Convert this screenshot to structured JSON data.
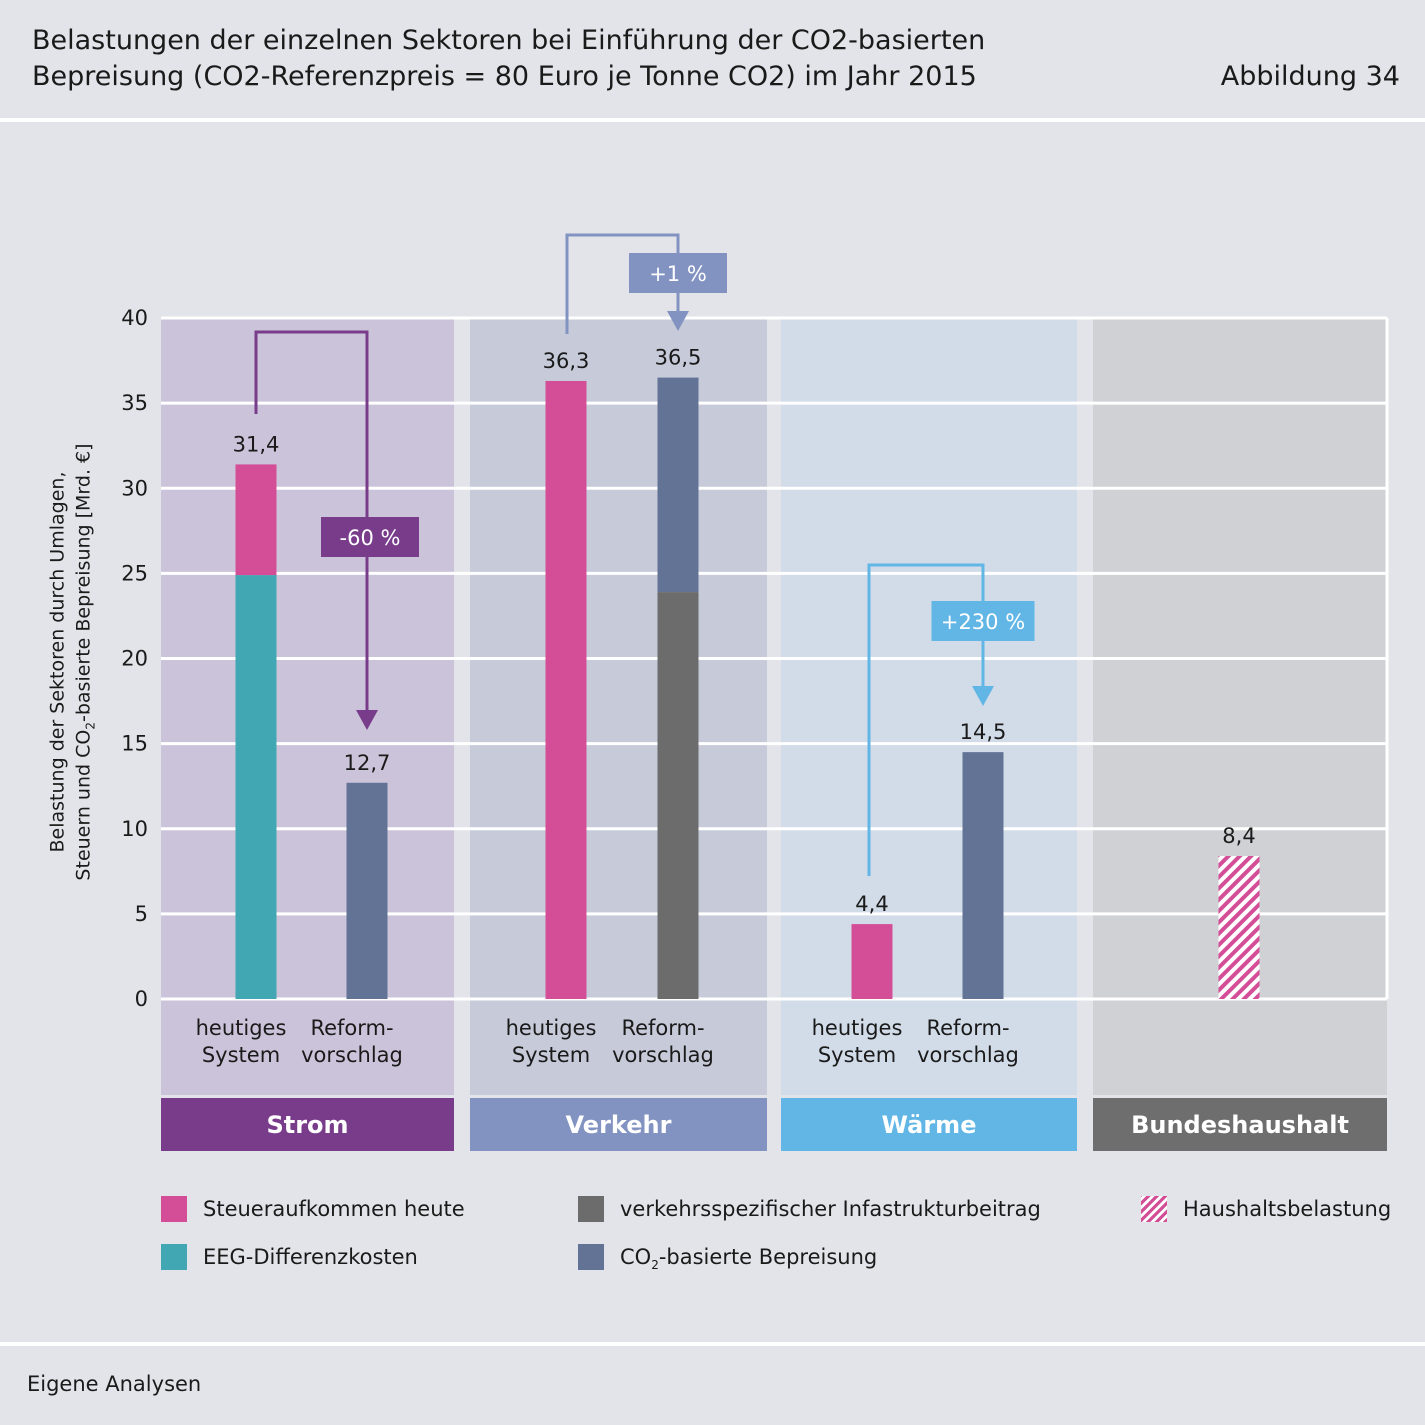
{
  "header": {
    "title_line1": "Belastungen der einzelnen Sektoren bei Einführung der CO2-basierten",
    "title_line2": "Bepreisung (CO2-Referenzpreis = 80 Euro je Tonne CO2) im Jahr 2015",
    "figure_label": "Abbildung 34"
  },
  "chart_data": {
    "type": "bar",
    "stacked": true,
    "ylabel_line1": "Belastung der Sektoren durch Umlagen,",
    "ylabel_line2": "Steuern und CO",
    "ylabel_sub": "2",
    "ylabel_line2_end": "-basierte Bepreisung [Mrd. €]",
    "ylim": [
      0,
      40
    ],
    "yticks": [
      0,
      5,
      10,
      15,
      20,
      25,
      30,
      35,
      40
    ],
    "grid": true,
    "groups": [
      {
        "name": "Strom",
        "color": "#783c8b",
        "bg": "#cbc3d9",
        "bars": [
          {
            "label1": "heutiges",
            "label2": "System",
            "total_label": "31,4",
            "segments": [
              {
                "series": "EEG-Differenzkosten",
                "value": 24.9
              },
              {
                "series": "Steueraufkommen heute",
                "value": 6.5
              }
            ]
          },
          {
            "label1": "Reform-",
            "label2": "vorschlag",
            "total_label": "12,7",
            "segments": [
              {
                "series": "CO2-basierte Bepreisung",
                "value": 12.7
              }
            ]
          }
        ],
        "change": {
          "label": "-60 %",
          "color": "#783c8b"
        }
      },
      {
        "name": "Verkehr",
        "color": "#8293c1",
        "bg": "#c6cad9",
        "bars": [
          {
            "label1": "heutiges",
            "label2": "System",
            "total_label": "36,3",
            "segments": [
              {
                "series": "Steueraufkommen heute",
                "value": 36.3
              }
            ]
          },
          {
            "label1": "Reform-",
            "label2": "vorschlag",
            "total_label": "36,5",
            "segments": [
              {
                "series": "verkehrsspezifischer Infastrukturbeitrag",
                "value": 23.9
              },
              {
                "series": "CO2-basierte Bepreisung",
                "value": 12.6
              }
            ]
          }
        ],
        "change": {
          "label": "+1 %",
          "color": "#8293c1"
        }
      },
      {
        "name": "Wärme",
        "color": "#62b6e6",
        "bg": "#d1dce8",
        "bars": [
          {
            "label1": "heutiges",
            "label2": "System",
            "total_label": "4,4",
            "segments": [
              {
                "series": "Steueraufkommen heute",
                "value": 4.4
              }
            ]
          },
          {
            "label1": "Reform-",
            "label2": "vorschlag",
            "total_label": "14,5",
            "segments": [
              {
                "series": "CO2-basierte Bepreisung",
                "value": 14.5
              }
            ]
          }
        ],
        "change": {
          "label": "+230 %",
          "color": "#62b6e6"
        }
      },
      {
        "name": "Bundeshaushalt",
        "color": "#6e6e6e",
        "bg": "#d0d1d4",
        "bars": [
          {
            "label1": "",
            "label2": "",
            "total_label": "8,4",
            "segments": [
              {
                "series": "Haushaltsbelastung",
                "value": 8.4
              }
            ]
          }
        ]
      }
    ],
    "series_colors": {
      "Steueraufkommen heute": "#d44e97",
      "EEG-Differenzkosten": "#41a7b3",
      "verkehrsspezifischer Infastrukturbeitrag": "#6c6c6c",
      "CO2-basierte Bepreisung": "#627395",
      "Haushaltsbelastung": "#d44e97"
    },
    "legend": [
      {
        "text": "Steueraufkommen heute",
        "color": "#d44e97",
        "pattern": false
      },
      {
        "text": "EEG-Differenzkosten",
        "color": "#41a7b3",
        "pattern": false
      },
      {
        "text": "verkehrsspezifischer Infastrukturbeitrag",
        "color": "#6c6c6c",
        "pattern": false
      },
      {
        "text": "CO",
        "sub": "2",
        "text_end": "-basierte Bepreisung",
        "color": "#627395",
        "pattern": false
      },
      {
        "text": "Haushaltsbelastung",
        "color": "#d44e97",
        "pattern": true
      }
    ]
  },
  "source": "Eigene Analysen"
}
